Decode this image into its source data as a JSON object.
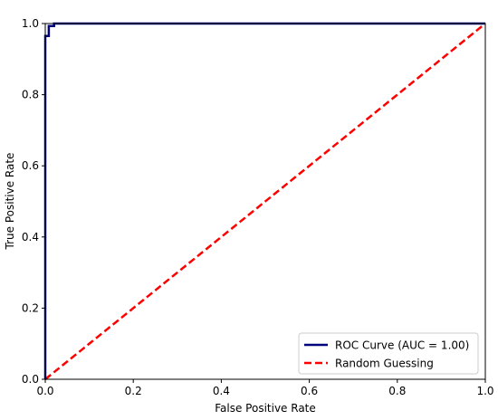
{
  "chart_data": {
    "type": "line",
    "title": "",
    "xlabel": "False Positive Rate",
    "ylabel": "True Positive Rate",
    "xlim": [
      0.0,
      1.0
    ],
    "ylim": [
      0.0,
      1.0
    ],
    "xticks": [
      "0.0",
      "0.2",
      "0.4",
      "0.6",
      "0.8",
      "1.0"
    ],
    "yticks": [
      "0.0",
      "0.2",
      "0.4",
      "0.6",
      "0.8",
      "1.0"
    ],
    "grid": false,
    "legend_position": "bottom-right",
    "series": [
      {
        "name": "ROC Curve (AUC = 1.00)",
        "color": "#00007f",
        "style": "solid",
        "x": [
          0.0,
          0.0,
          0.008,
          0.008,
          0.02,
          0.02,
          1.0
        ],
        "y": [
          0.0,
          0.965,
          0.965,
          0.993,
          0.993,
          1.0,
          1.0
        ]
      },
      {
        "name": "Random Guessing",
        "color": "#ff0000",
        "style": "dashed",
        "x": [
          0.0,
          1.0
        ],
        "y": [
          0.0,
          1.0
        ]
      }
    ]
  }
}
